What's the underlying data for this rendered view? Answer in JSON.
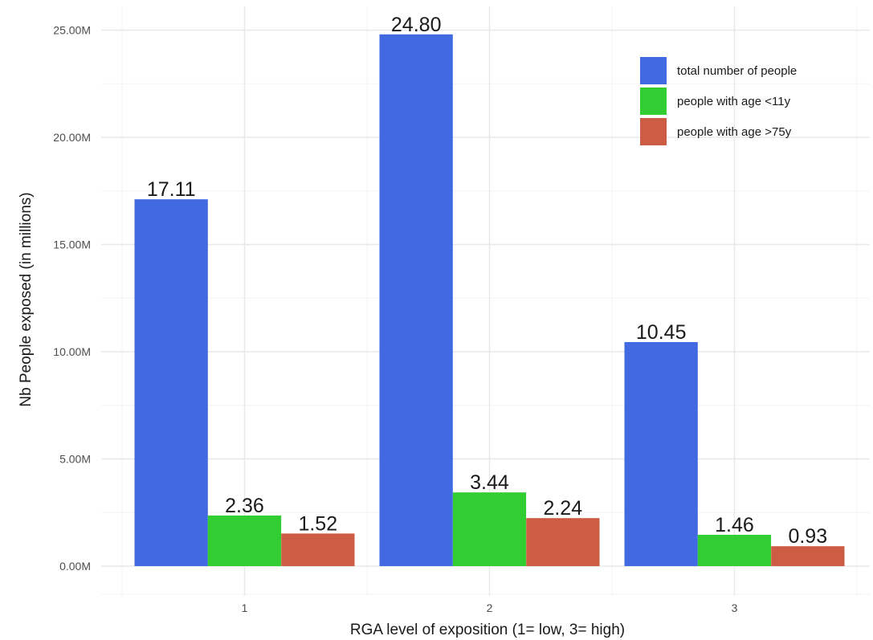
{
  "chart_data": {
    "type": "bar",
    "categories": [
      "1",
      "2",
      "3"
    ],
    "series": [
      {
        "name": "total number of people",
        "color": "#4169E1",
        "values": [
          17.11,
          24.8,
          10.45
        ],
        "labels": [
          "17.11",
          "24.80",
          "10.45"
        ]
      },
      {
        "name": "people with age <11y",
        "color": "#32CD32",
        "values": [
          2.36,
          3.44,
          1.46
        ],
        "labels": [
          "2.36",
          "3.44",
          "1.46"
        ]
      },
      {
        "name": "people with age >75y",
        "color": "#CD5C44",
        "values": [
          1.52,
          2.24,
          0.93
        ],
        "labels": [
          "1.52",
          "2.24",
          "0.93"
        ]
      }
    ],
    "xlabel": "RGA level of exposition (1= low, 3= high)",
    "ylabel": "Nb People exposed (in millions)",
    "yticks": [
      {
        "value": 0,
        "label": "0.00M"
      },
      {
        "value": 5,
        "label": "5.00M"
      },
      {
        "value": 10,
        "label": "10.00M"
      },
      {
        "value": 15,
        "label": "15.00M"
      },
      {
        "value": 20,
        "label": "20.00M"
      },
      {
        "value": 25,
        "label": "25.00M"
      }
    ],
    "ylim": [
      -1.3,
      26.3
    ],
    "grid": true,
    "legend_position": "top-right"
  }
}
